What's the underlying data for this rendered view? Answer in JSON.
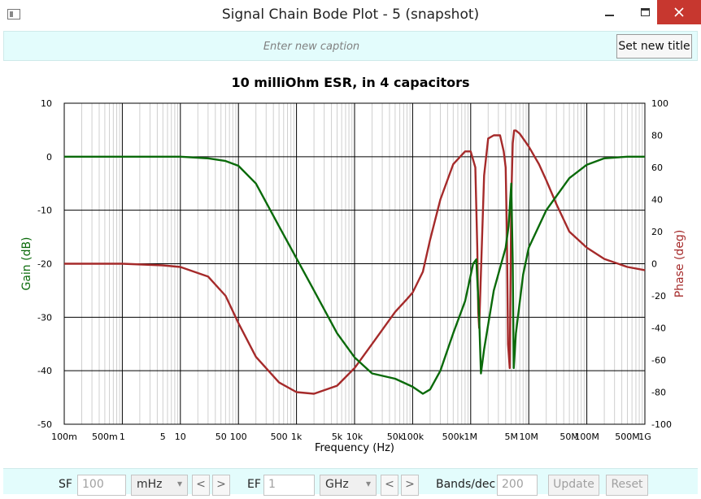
{
  "window": {
    "title": "Signal Chain Bode Plot - 5  (snapshot)"
  },
  "caption": {
    "placeholder": "Enter new caption",
    "set_title_label": "Set new title"
  },
  "controls": {
    "sf_label": "SF",
    "sf_value": "100",
    "sf_unit": "mHz",
    "ef_label": "EF",
    "ef_value": "1",
    "ef_unit": "GHz",
    "prev_label": "<",
    "next_label": ">",
    "bands_label": "Bands/dec",
    "bands_value": "200",
    "update_label": "Update",
    "reset_label": "Reset"
  },
  "colors": {
    "gain": "#0a6a0a",
    "phase": "#a52a2a",
    "close_button": "#c7372f",
    "panel_bg": "#e3fcfc"
  },
  "chart_data": {
    "type": "line",
    "title": "10 milliOhm ESR, in 4 capacitors",
    "xlabel": "Frequency (Hz)",
    "ylabel": "Gain (dB)",
    "y2label": "Phase (deg)",
    "xscale": "log",
    "xlim": [
      0.1,
      1000000000
    ],
    "ylim": [
      -50,
      10
    ],
    "y2lim": [
      -100,
      100
    ],
    "grid": true,
    "x_tick_labels": [
      {
        "x": 0.1,
        "label": "100m"
      },
      {
        "x": 0.5,
        "label": "500m"
      },
      {
        "x": 1,
        "label": "1"
      },
      {
        "x": 5,
        "label": "5"
      },
      {
        "x": 10,
        "label": "10"
      },
      {
        "x": 50,
        "label": "50"
      },
      {
        "x": 100,
        "label": "100"
      },
      {
        "x": 500,
        "label": "500"
      },
      {
        "x": 1000,
        "label": "1k"
      },
      {
        "x": 5000,
        "label": "5k"
      },
      {
        "x": 10000,
        "label": "10k"
      },
      {
        "x": 50000,
        "label": "50k"
      },
      {
        "x": 100000,
        "label": "100k"
      },
      {
        "x": 500000,
        "label": "500k"
      },
      {
        "x": 1000000,
        "label": "1M"
      },
      {
        "x": 5000000,
        "label": "5M"
      },
      {
        "x": 10000000,
        "label": "10M"
      },
      {
        "x": 50000000,
        "label": "50M"
      },
      {
        "x": 100000000,
        "label": "100M"
      },
      {
        "x": 500000000,
        "label": "500M"
      },
      {
        "x": 1000000000,
        "label": "1G"
      }
    ],
    "y_ticks": [
      10,
      0,
      -10,
      -20,
      -30,
      -40,
      -50
    ],
    "y2_ticks": [
      100,
      80,
      60,
      40,
      20,
      0,
      -20,
      -40,
      -60,
      -80,
      -100
    ],
    "series": [
      {
        "name": "Gain (dB)",
        "axis": "left",
        "x": [
          0.1,
          1,
          10,
          30,
          60,
          100,
          200,
          500,
          1000,
          2000,
          5000,
          10000,
          20000,
          50000,
          100000,
          150000,
          200000,
          300000,
          500000,
          800000,
          1100000,
          1250000,
          1400000,
          1500000,
          1700000,
          2500000,
          4000000,
          4500000,
          5000000,
          5300000,
          5500000,
          6000000,
          8000000,
          10000000,
          20000000,
          50000000,
          100000000,
          200000000,
          500000000,
          1000000000
        ],
        "values": [
          0,
          0,
          0,
          -0.3,
          -0.8,
          -1.7,
          -5,
          -13,
          -19,
          -25,
          -33,
          -37.5,
          -40.5,
          -41.5,
          -43,
          -44.3,
          -43.5,
          -40,
          -33,
          -27,
          -20,
          -19.2,
          -30,
          -40.5,
          -36,
          -25,
          -17,
          -13,
          -5,
          -20,
          -39.5,
          -33,
          -22,
          -17,
          -10,
          -4,
          -1.5,
          -0.3,
          0,
          0
        ]
      },
      {
        "name": "Phase (deg)",
        "axis": "right",
        "x": [
          0.1,
          1,
          5,
          10,
          30,
          60,
          100,
          200,
          500,
          1000,
          2000,
          5000,
          10000,
          20000,
          50000,
          80000,
          100000,
          150000,
          200000,
          300000,
          500000,
          800000,
          1000000,
          1200000,
          1300000,
          1350000,
          1400000,
          1550000,
          1700000,
          2000000,
          2500000,
          3200000,
          3700000,
          4000000,
          4200000,
          4400000,
          4700000,
          5000000,
          5300000,
          5600000,
          6000000,
          7000000,
          8000000,
          10000000,
          15000000,
          20000000,
          30000000,
          50000000,
          100000000,
          200000000,
          500000000,
          1000000000
        ],
        "values": [
          0,
          0,
          -1,
          -2,
          -8,
          -20,
          -37,
          -58,
          -74,
          -80,
          -81,
          -76,
          -65,
          -50,
          -30,
          -22,
          -18,
          -5,
          15,
          40,
          62,
          70,
          70,
          60,
          10,
          -30,
          -40,
          10,
          55,
          78,
          80,
          80,
          70,
          60,
          20,
          -50,
          -65,
          40,
          75,
          83,
          83,
          81,
          78,
          73,
          62,
          52,
          37,
          20,
          10,
          3,
          -2,
          -4
        ]
      }
    ]
  }
}
